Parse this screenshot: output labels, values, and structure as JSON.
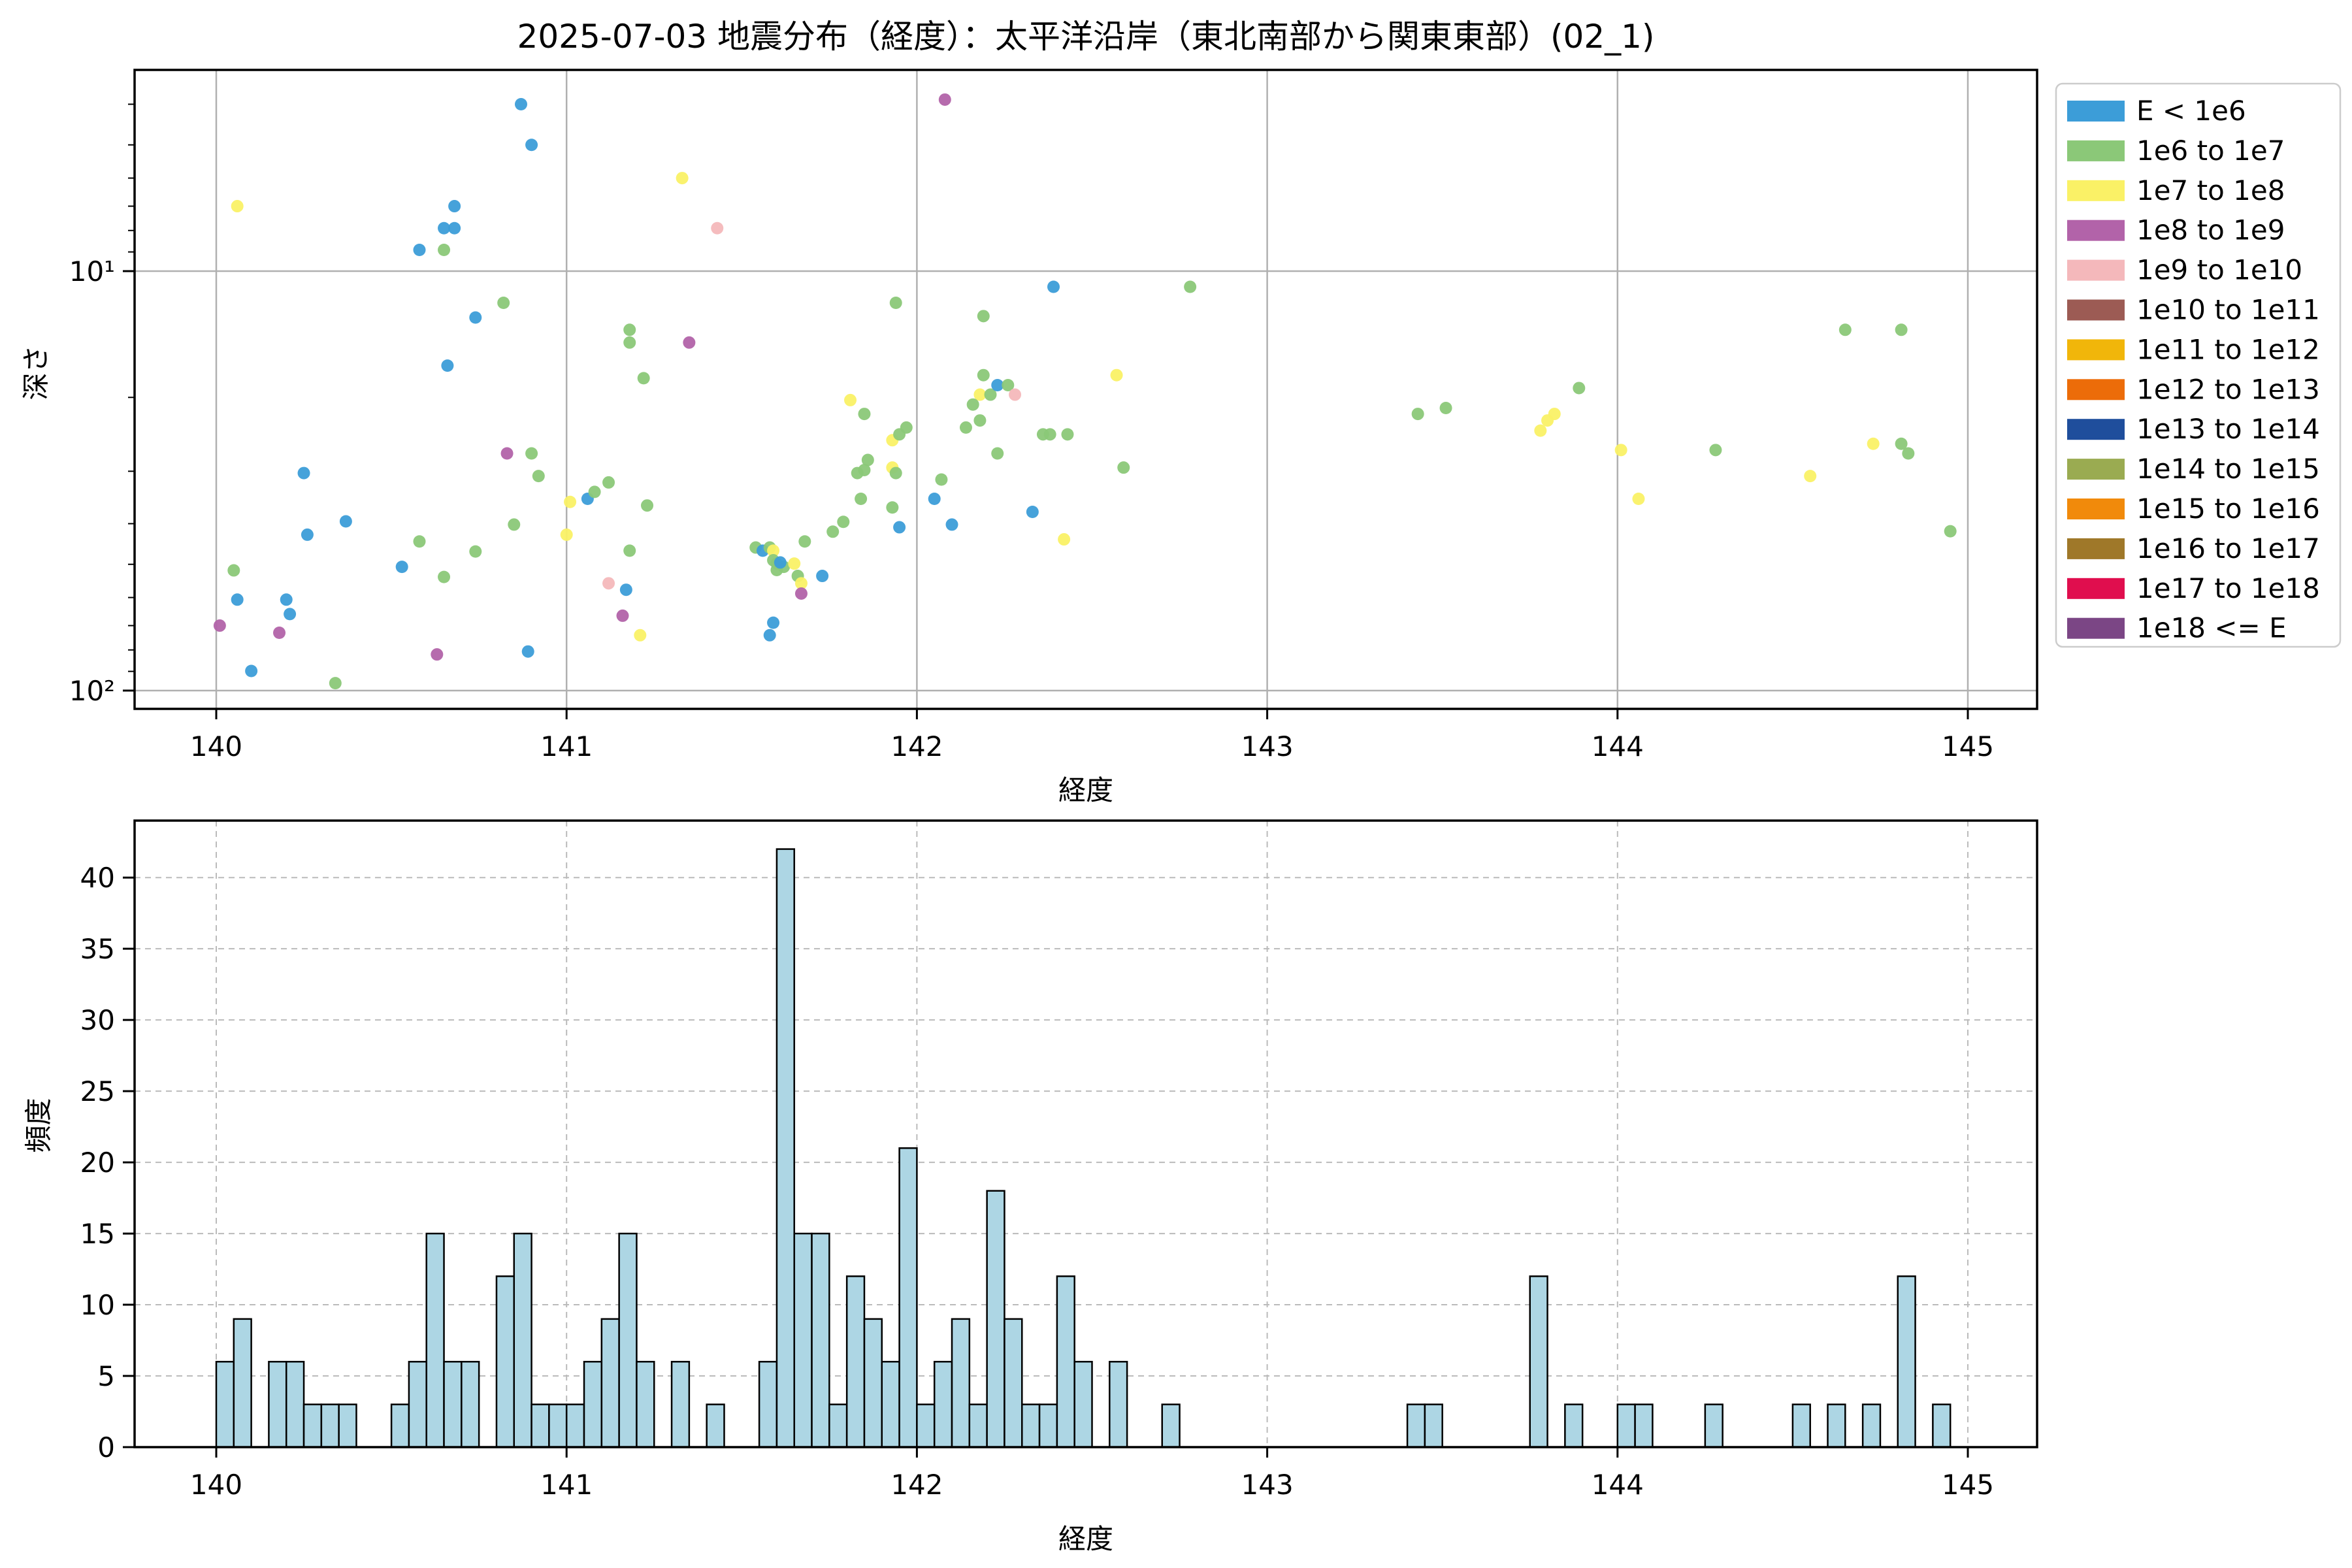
{
  "title": "2025-07-03 地震分布（経度）：太平洋沿岸（東北南部から関東東部）(02_1)",
  "legend": {
    "entries": [
      {
        "label": "E < 1e6",
        "color": "#3C9DD8"
      },
      {
        "label": "1e6 to 1e7",
        "color": "#8BC878"
      },
      {
        "label": "1e7 to 1e8",
        "color": "#FAF166"
      },
      {
        "label": "1e8 to 1e9",
        "color": "#B263A9"
      },
      {
        "label": "1e9 to 1e10",
        "color": "#F4B8BB"
      },
      {
        "label": "1e10 to 1e11",
        "color": "#9C5B54"
      },
      {
        "label": "1e11 to 1e12",
        "color": "#F1B60A"
      },
      {
        "label": "1e12 to 1e13",
        "color": "#EC6C09"
      },
      {
        "label": "1e13 to 1e14",
        "color": "#1F4E9C"
      },
      {
        "label": "1e14 to 1e15",
        "color": "#9AAB51"
      },
      {
        "label": "1e15 to 1e16",
        "color": "#F18A0B"
      },
      {
        "label": "1e16 to 1e17",
        "color": "#9F7829"
      },
      {
        "label": "1e17 to 1e18",
        "color": "#E00E4E"
      },
      {
        "label": "1e18 <= E",
        "color": "#7B4685"
      }
    ]
  },
  "chart_data": [
    {
      "type": "scatter",
      "xlabel": "経度",
      "ylabel": "深さ",
      "x_ticks": [
        140,
        141,
        142,
        143,
        144,
        145
      ],
      "y_scale": "log, inverted (depth increases downward)",
      "y_tick_labels": [
        "10¹",
        "10²"
      ],
      "y_gridline_values": [
        10,
        100
      ],
      "y_minor_ticks": [
        4,
        5,
        6,
        7,
        8,
        9,
        20,
        30,
        40,
        50,
        60,
        70,
        80,
        90
      ],
      "xlim": [
        139.77,
        145.2
      ],
      "ylim": [
        3.3,
        109
      ],
      "grid": "solid gray at major ticks",
      "point_categories": [
        "E < 1e6",
        "1e6 to 1e7",
        "1e7 to 1e8",
        "1e8 to 1e9",
        "1e9 to 1e10"
      ],
      "points_format": "[longitude, depth_km, category_index]",
      "points": [
        [
          140.06,
          7.0,
          2
        ],
        [
          140.68,
          7.0,
          0
        ],
        [
          140.65,
          7.9,
          0
        ],
        [
          140.68,
          7.9,
          0
        ],
        [
          140.58,
          8.9,
          0
        ],
        [
          140.65,
          8.9,
          1
        ],
        [
          140.74,
          12.9,
          0
        ],
        [
          140.66,
          16.8,
          0
        ],
        [
          140.25,
          30.3,
          0
        ],
        [
          140.37,
          39.5,
          0
        ],
        [
          140.26,
          42.5,
          0
        ],
        [
          140.58,
          44.1,
          1
        ],
        [
          140.74,
          46.6,
          1
        ],
        [
          140.53,
          50.7,
          0
        ],
        [
          140.65,
          53.6,
          1
        ],
        [
          140.05,
          51.7,
          1
        ],
        [
          140.06,
          60.7,
          0
        ],
        [
          140.2,
          60.7,
          0
        ],
        [
          140.21,
          65.7,
          0
        ],
        [
          140.01,
          70.0,
          3
        ],
        [
          140.18,
          72.8,
          3
        ],
        [
          140.63,
          82.0,
          3
        ],
        [
          140.1,
          89.8,
          0
        ],
        [
          140.34,
          96.0,
          1
        ],
        [
          140.87,
          4.0,
          0
        ],
        [
          140.9,
          5.0,
          0
        ],
        [
          141.33,
          6.0,
          2
        ],
        [
          141.43,
          7.9,
          4
        ],
        [
          140.82,
          11.9,
          1
        ],
        [
          141.18,
          13.8,
          1
        ],
        [
          141.18,
          14.8,
          1
        ],
        [
          141.35,
          14.8,
          3
        ],
        [
          141.22,
          18.0,
          1
        ],
        [
          140.83,
          27.2,
          3
        ],
        [
          140.9,
          27.2,
          1
        ],
        [
          140.92,
          30.8,
          1
        ],
        [
          140.85,
          40.2,
          1
        ],
        [
          141.01,
          35.5,
          2
        ],
        [
          141.06,
          34.9,
          0
        ],
        [
          141.08,
          33.6,
          1
        ],
        [
          141.12,
          31.9,
          1
        ],
        [
          141.0,
          42.5,
          2
        ],
        [
          141.23,
          36.2,
          1
        ],
        [
          141.18,
          46.4,
          1
        ],
        [
          141.12,
          55.5,
          4
        ],
        [
          141.17,
          57.5,
          0
        ],
        [
          141.16,
          66.3,
          3
        ],
        [
          141.21,
          73.8,
          2
        ],
        [
          140.89,
          80.7,
          0
        ],
        [
          141.54,
          45.6,
          1
        ],
        [
          141.56,
          46.4,
          0
        ],
        [
          141.58,
          45.6,
          1
        ],
        [
          141.59,
          46.4,
          2
        ],
        [
          141.59,
          48.9,
          1
        ],
        [
          141.6,
          49.8,
          1
        ],
        [
          141.62,
          50.7,
          1
        ],
        [
          141.6,
          51.6,
          1
        ],
        [
          141.61,
          49.5,
          0
        ],
        [
          141.65,
          49.8,
          2
        ],
        [
          141.68,
          44.1,
          1
        ],
        [
          141.76,
          41.8,
          1
        ],
        [
          141.79,
          39.6,
          1
        ],
        [
          141.66,
          53.3,
          1
        ],
        [
          141.67,
          55.5,
          2
        ],
        [
          141.67,
          58.7,
          3
        ],
        [
          141.73,
          53.3,
          0
        ],
        [
          141.59,
          68.9,
          0
        ],
        [
          141.58,
          73.8,
          0
        ],
        [
          141.81,
          20.3,
          2
        ],
        [
          142.08,
          3.9,
          3
        ],
        [
          142.39,
          10.9,
          0
        ],
        [
          142.78,
          10.9,
          1
        ],
        [
          141.94,
          11.9,
          1
        ],
        [
          142.19,
          12.8,
          1
        ],
        [
          142.19,
          17.7,
          1
        ],
        [
          142.18,
          19.7,
          2
        ],
        [
          142.21,
          19.7,
          1
        ],
        [
          142.23,
          18.7,
          0
        ],
        [
          142.26,
          18.7,
          1
        ],
        [
          142.28,
          19.7,
          4
        ],
        [
          142.16,
          20.8,
          1
        ],
        [
          142.18,
          22.7,
          1
        ],
        [
          142.14,
          23.6,
          1
        ],
        [
          142.57,
          17.7,
          2
        ],
        [
          142.36,
          24.5,
          1
        ],
        [
          142.38,
          24.5,
          1
        ],
        [
          142.43,
          24.5,
          1
        ],
        [
          142.23,
          27.2,
          1
        ],
        [
          142.59,
          29.4,
          1
        ],
        [
          142.07,
          31.4,
          1
        ],
        [
          142.05,
          34.9,
          0
        ],
        [
          142.1,
          40.2,
          0
        ],
        [
          142.33,
          37.5,
          0
        ],
        [
          142.42,
          43.6,
          2
        ],
        [
          141.85,
          21.9,
          1
        ],
        [
          141.86,
          28.2,
          1
        ],
        [
          141.85,
          29.8,
          1
        ],
        [
          141.83,
          30.3,
          1
        ],
        [
          141.93,
          25.3,
          2
        ],
        [
          141.95,
          24.5,
          1
        ],
        [
          141.97,
          23.6,
          1
        ],
        [
          141.93,
          29.4,
          2
        ],
        [
          141.94,
          30.3,
          1
        ],
        [
          141.84,
          34.9,
          1
        ],
        [
          141.93,
          36.6,
          1
        ],
        [
          141.95,
          40.8,
          0
        ],
        [
          143.43,
          21.9,
          1
        ],
        [
          143.51,
          21.2,
          1
        ],
        [
          143.78,
          24.0,
          2
        ],
        [
          143.8,
          22.7,
          2
        ],
        [
          143.82,
          21.9,
          2
        ],
        [
          143.89,
          19.0,
          1
        ],
        [
          144.01,
          26.7,
          2
        ],
        [
          144.06,
          34.9,
          2
        ],
        [
          144.28,
          26.7,
          1
        ],
        [
          144.55,
          30.8,
          2
        ],
        [
          144.65,
          13.8,
          1
        ],
        [
          144.81,
          13.8,
          1
        ],
        [
          144.73,
          25.8,
          2
        ],
        [
          144.81,
          25.8,
          1
        ],
        [
          144.83,
          27.2,
          1
        ],
        [
          144.95,
          41.7,
          1
        ]
      ]
    },
    {
      "type": "bar",
      "xlabel": "経度",
      "ylabel": "頻度",
      "x_ticks": [
        140,
        141,
        142,
        143,
        144,
        145
      ],
      "y_ticks": [
        0,
        5,
        10,
        15,
        20,
        25,
        30,
        35,
        40
      ],
      "xlim": [
        139.77,
        145.2
      ],
      "ylim": [
        0,
        44
      ],
      "grid": "dashed gray at major ticks",
      "bin_width": 0.05,
      "bar_color": "#ADD6E4",
      "bar_edge_color": "#000000",
      "bars_format": "[bin_start_longitude, frequency]",
      "bars": [
        [
          140.0,
          6
        ],
        [
          140.05,
          9
        ],
        [
          140.15,
          6
        ],
        [
          140.2,
          6
        ],
        [
          140.25,
          3
        ],
        [
          140.3,
          3
        ],
        [
          140.35,
          3
        ],
        [
          140.5,
          3
        ],
        [
          140.55,
          6
        ],
        [
          140.6,
          15
        ],
        [
          140.65,
          6
        ],
        [
          140.7,
          6
        ],
        [
          140.8,
          12
        ],
        [
          140.85,
          15
        ],
        [
          140.9,
          3
        ],
        [
          140.95,
          3
        ],
        [
          141.0,
          3
        ],
        [
          141.05,
          6
        ],
        [
          141.1,
          9
        ],
        [
          141.15,
          15
        ],
        [
          141.2,
          6
        ],
        [
          141.3,
          6
        ],
        [
          141.4,
          3
        ],
        [
          141.55,
          6
        ],
        [
          141.6,
          42
        ],
        [
          141.65,
          15
        ],
        [
          141.7,
          15
        ],
        [
          141.75,
          3
        ],
        [
          141.8,
          12
        ],
        [
          141.85,
          9
        ],
        [
          141.9,
          6
        ],
        [
          141.95,
          21
        ],
        [
          142.0,
          3
        ],
        [
          142.05,
          6
        ],
        [
          142.1,
          9
        ],
        [
          142.15,
          3
        ],
        [
          142.2,
          18
        ],
        [
          142.25,
          9
        ],
        [
          142.3,
          3
        ],
        [
          142.35,
          3
        ],
        [
          142.4,
          12
        ],
        [
          142.45,
          6
        ],
        [
          142.55,
          6
        ],
        [
          142.7,
          3
        ],
        [
          143.4,
          3
        ],
        [
          143.45,
          3
        ],
        [
          143.75,
          12
        ],
        [
          143.85,
          3
        ],
        [
          144.0,
          3
        ],
        [
          144.05,
          3
        ],
        [
          144.25,
          3
        ],
        [
          144.5,
          3
        ],
        [
          144.6,
          3
        ],
        [
          144.7,
          3
        ],
        [
          144.8,
          12
        ],
        [
          144.9,
          3
        ]
      ]
    }
  ]
}
